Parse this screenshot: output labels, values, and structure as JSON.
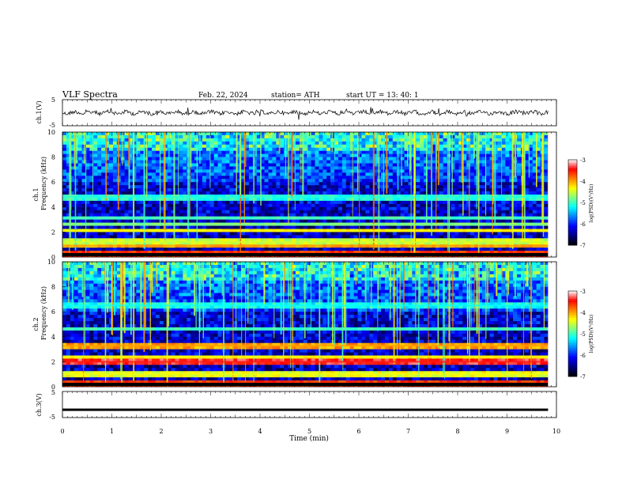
{
  "header": {
    "title": "VLF  Spectra",
    "date": "Feb. 22, 2024",
    "station": "station= ATH",
    "start_ut": "start  UT  =   13: 40: 1"
  },
  "chart_data": [
    {
      "type": "line",
      "panel": "ch1-waveform",
      "ylabel": "ch.1(V)",
      "ylim": [
        -5,
        5
      ],
      "yticks": [
        "5",
        "-5"
      ],
      "xlim": [
        0,
        10
      ],
      "series_description": "noisy waveform centered near 0 V with short spikes",
      "level": 0
    },
    {
      "type": "heatmap",
      "panel": "ch1-spectrogram",
      "ylabel": "ch.1\nFrequency  (kHz)",
      "ylabel_line1": "ch.1",
      "ylabel_line2": "Frequency  (kHz)",
      "ylim": [
        0,
        10
      ],
      "yticks": [
        "0",
        "2",
        "4",
        "6",
        "8",
        "10"
      ],
      "xlim": [
        0,
        10
      ],
      "colorbar": {
        "label": "log(PSD)(V²/Hz)",
        "range": [
          -7,
          -3
        ],
        "ticks": [
          "-3",
          "-4",
          "-5",
          "-6",
          "-7"
        ]
      },
      "bands_khz": [
        {
          "f": 0.3,
          "level": -3.6
        },
        {
          "f": 0.9,
          "level": -4.0
        },
        {
          "f": 1.2,
          "level": -4.5
        },
        {
          "f": 2.1,
          "level": -4.3
        },
        {
          "f": 2.6,
          "level": -4.8
        },
        {
          "f": 3.1,
          "level": -5.0
        },
        {
          "f": 4.8,
          "level": -5.1
        }
      ]
    },
    {
      "type": "heatmap",
      "panel": "ch2-spectrogram",
      "ylabel_line1": "ch.2",
      "ylabel_line2": "Frequency  (kHz)",
      "ylim": [
        0,
        10
      ],
      "yticks": [
        "0",
        "2",
        "4",
        "6",
        "8",
        "10"
      ],
      "xlim": [
        0,
        10
      ],
      "colorbar": {
        "label": "log(PSD)(V²/Hz)",
        "range": [
          -7,
          -3
        ],
        "ticks": [
          "-3",
          "-4",
          "-5",
          "-6",
          "-7"
        ]
      },
      "bands_khz": [
        {
          "f": 0.3,
          "level": -3.6
        },
        {
          "f": 1.0,
          "level": -4.4
        },
        {
          "f": 2.0,
          "level": -3.4
        },
        {
          "f": 2.4,
          "level": -4.3
        },
        {
          "f": 3.3,
          "level": -4.0
        },
        {
          "f": 4.6,
          "level": -5.0
        },
        {
          "f": 6.5,
          "level": -5.2
        }
      ]
    },
    {
      "type": "line",
      "panel": "ch3-waveform",
      "ylabel": "ch.3(V)",
      "ylim": [
        -5,
        5
      ],
      "yticks": [
        "5",
        "-5"
      ],
      "xlim": [
        0,
        10
      ],
      "xlabel": "Time  (min)",
      "xticks": [
        "0",
        "1",
        "2",
        "3",
        "4",
        "5",
        "6",
        "7",
        "8",
        "9",
        "10"
      ],
      "series_description": "nearly constant line",
      "level": -2
    }
  ],
  "colors": {
    "colormap": [
      "#000000",
      "#00007f",
      "#0000ff",
      "#0080ff",
      "#00ffff",
      "#80ff80",
      "#ffff00",
      "#ff8000",
      "#ff0000",
      "#ffffff"
    ]
  }
}
